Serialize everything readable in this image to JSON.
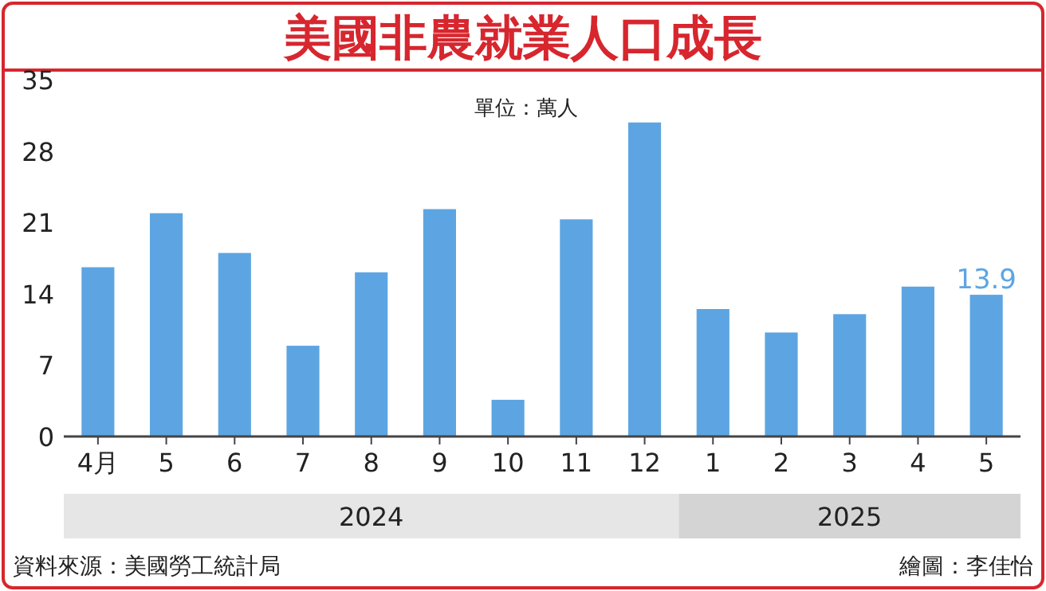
{
  "chart_data": {
    "type": "bar",
    "title": "美國非農就業人口成長",
    "subtitle": "單位：萬人",
    "categories": [
      "4月",
      "5",
      "6",
      "7",
      "8",
      "9",
      "10",
      "11",
      "12",
      "1",
      "2",
      "3",
      "4",
      "5"
    ],
    "values": [
      16.6,
      21.9,
      18.0,
      8.9,
      16.1,
      22.3,
      3.6,
      21.3,
      30.8,
      12.5,
      10.2,
      12.0,
      14.7,
      13.9
    ],
    "value_labels": [
      null,
      null,
      null,
      null,
      null,
      null,
      null,
      null,
      null,
      null,
      null,
      null,
      null,
      "13.9"
    ],
    "color": "#5da5e2",
    "ylim": [
      0,
      35
    ],
    "yticks": [
      0,
      7,
      14,
      21,
      28,
      35
    ],
    "annotations": [
      "2024",
      "2025",
      "資料來源：美國勞工統計局",
      "繪圖：李佳怡"
    ]
  }
}
